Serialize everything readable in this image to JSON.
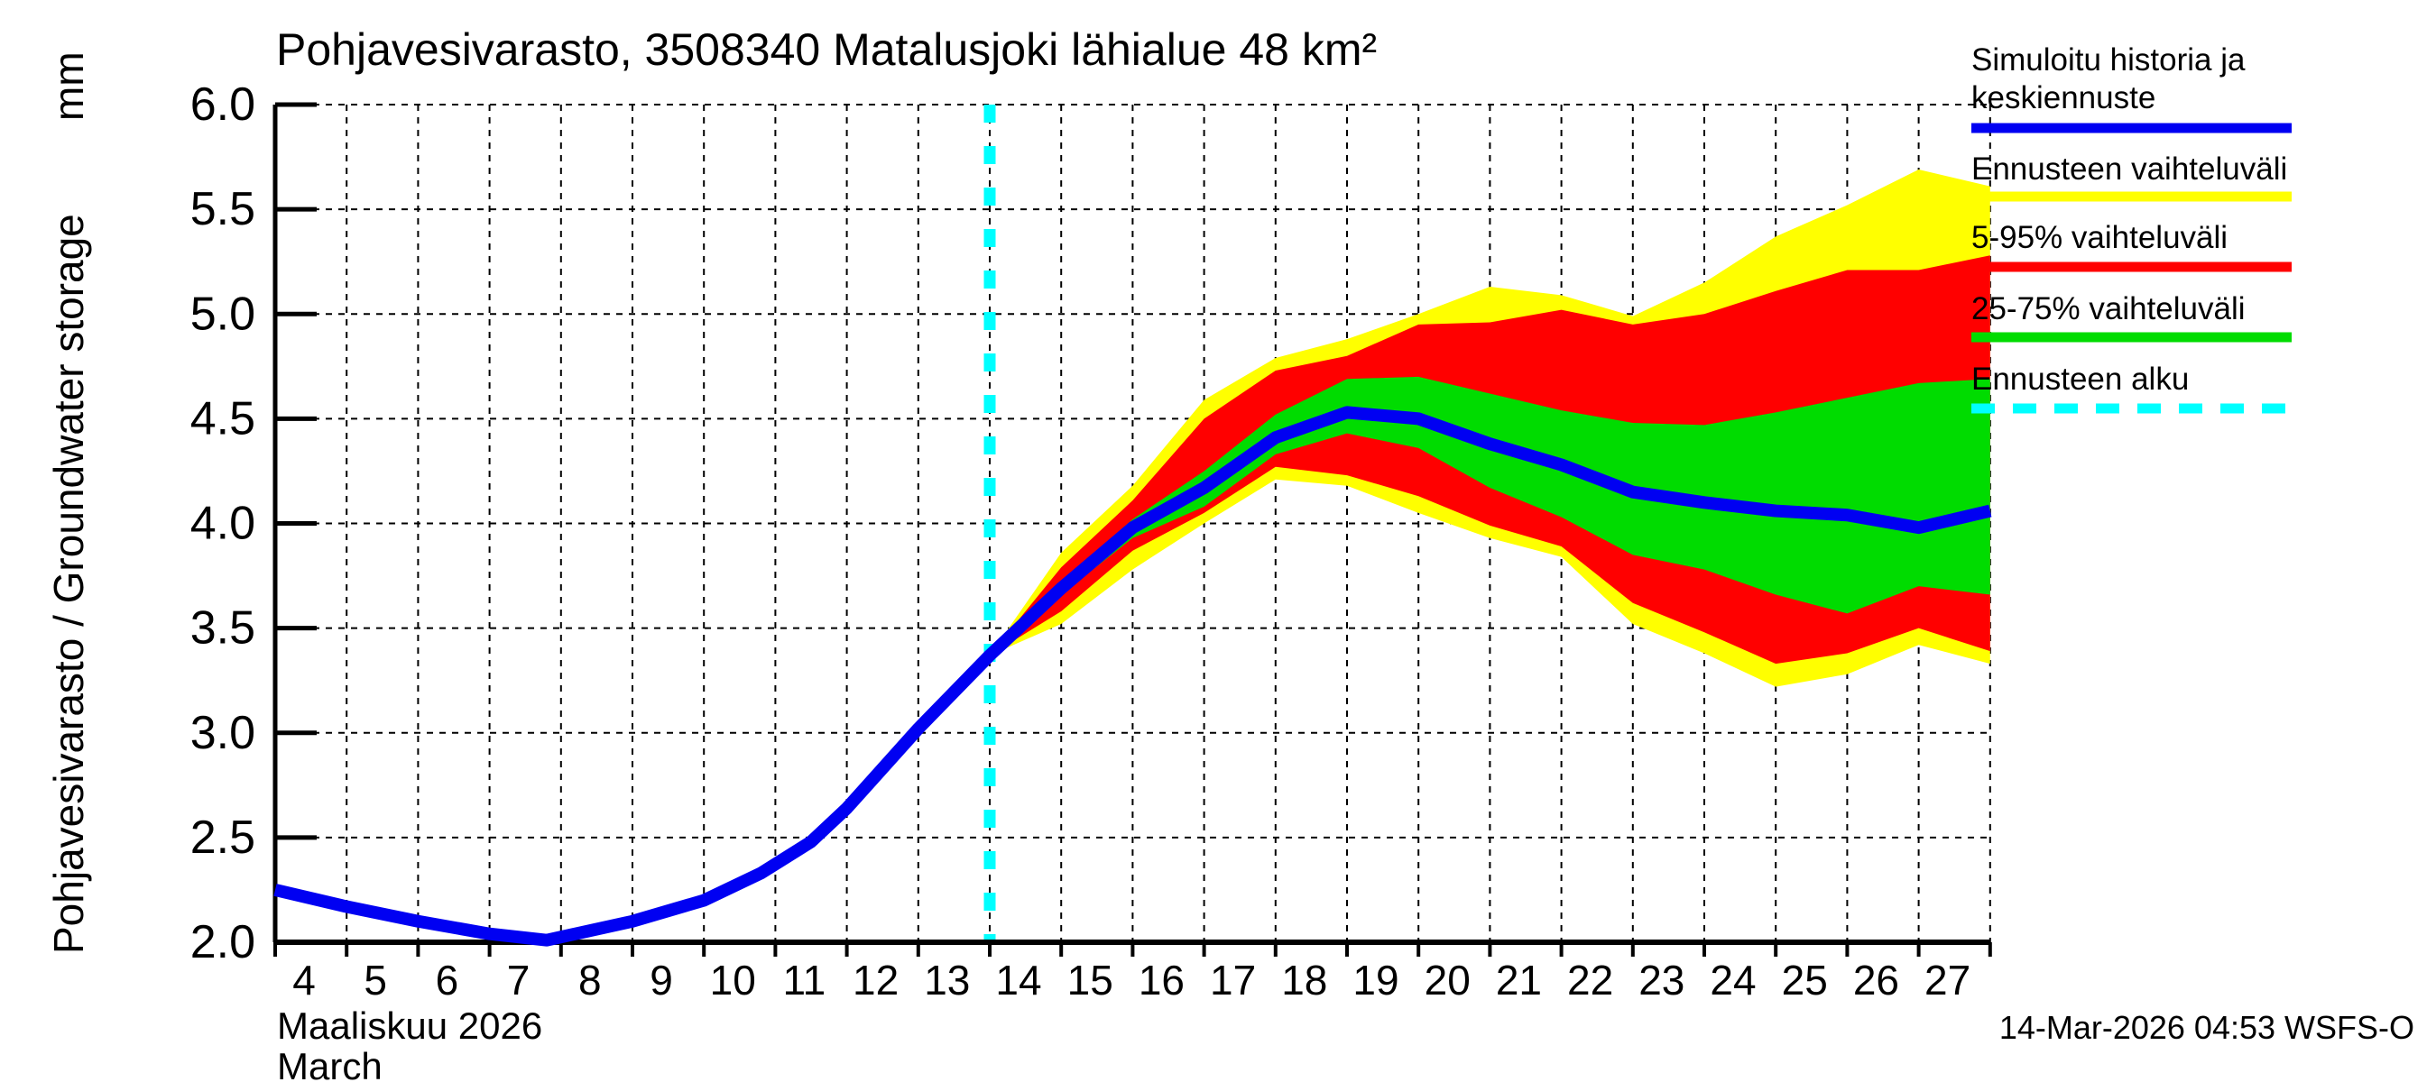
{
  "title": "Pohjavesivarasto, 3508340 Matalusjoki lähialue 48 km²",
  "y_axis": {
    "label": "Pohjavesivarasto / Groundwater storage",
    "unit": "mm",
    "tick_labels": [
      "6.0",
      "5.5",
      "5.0",
      "4.5",
      "4.0",
      "3.5",
      "3.0",
      "2.5",
      "2.0"
    ]
  },
  "x_axis": {
    "month_label_fi": "Maaliskuu 2026",
    "month_label_en": "March",
    "day_labels": [
      "4",
      "5",
      "6",
      "7",
      "8",
      "9",
      "10",
      "11",
      "12",
      "13",
      "14",
      "15",
      "16",
      "17",
      "18",
      "19",
      "20",
      "21",
      "22",
      "23",
      "24",
      "25",
      "26",
      "27"
    ]
  },
  "footer": {
    "generated": "14-Mar-2026 04:53 WSFS-O"
  },
  "legend": {
    "items": [
      {
        "lines": [
          "Simuloitu historia ja",
          "keskiennuste"
        ],
        "color": "#0000f2",
        "style": "solid"
      },
      {
        "lines": [
          "Ennusteen vaihteluväli"
        ],
        "color": "#ffff00",
        "style": "solid"
      },
      {
        "lines": [
          "5-95% vaihteluväli"
        ],
        "color": "#ff0000",
        "style": "solid"
      },
      {
        "lines": [
          "25-75% vaihteluväli"
        ],
        "color": "#00dc00",
        "style": "solid"
      },
      {
        "lines": [
          "Ennusteen alku"
        ],
        "color": "#00ffff",
        "style": "dashed"
      }
    ]
  },
  "colors": {
    "median": "#0000f2",
    "range_minmax": "#ffff00",
    "range_5_95": "#ff0000",
    "range_25_75": "#00dc00",
    "forecast_start": "#00ffff",
    "grid": "#000000",
    "text": "#000000",
    "background": "#ffffff"
  },
  "chart_data": {
    "type": "area",
    "title": "Pohjavesivarasto, 3508340 Matalusjoki lähialue 48 km²",
    "xlabel": "Maaliskuu 2026 / March",
    "ylabel": "Pohjavesivarasto / Groundwater storage (mm)",
    "ylim": [
      2.0,
      6.0
    ],
    "xlim_days": [
      4,
      28
    ],
    "grid": true,
    "legend_position": "top-right",
    "forecast_start_day": 14,
    "history": {
      "name": "Simuloitu historia (median line, observed part)",
      "x": [
        4,
        5,
        6,
        7,
        7.8,
        9,
        10,
        10.8,
        11.5,
        12,
        13,
        14
      ],
      "y": [
        2.25,
        2.17,
        2.1,
        2.04,
        2.01,
        2.1,
        2.2,
        2.33,
        2.48,
        2.64,
        3.02,
        3.37
      ]
    },
    "forecast": {
      "x": [
        14,
        15,
        16,
        17,
        18,
        19,
        20,
        21,
        22,
        23,
        24,
        25,
        26,
        27,
        28
      ],
      "median": [
        3.37,
        3.69,
        3.98,
        4.17,
        4.41,
        4.53,
        4.5,
        4.38,
        4.28,
        4.15,
        4.1,
        4.06,
        4.04,
        3.98,
        4.06
      ],
      "p75": [
        3.37,
        3.72,
        4.02,
        4.25,
        4.52,
        4.69,
        4.7,
        4.62,
        4.54,
        4.48,
        4.47,
        4.53,
        4.6,
        4.67,
        4.69
      ],
      "p25": [
        3.37,
        3.66,
        3.93,
        4.08,
        4.33,
        4.43,
        4.36,
        4.17,
        4.03,
        3.85,
        3.78,
        3.66,
        3.57,
        3.7,
        3.66
      ],
      "p95": [
        3.37,
        3.79,
        4.11,
        4.5,
        4.73,
        4.8,
        4.95,
        4.96,
        5.02,
        4.95,
        5.0,
        5.11,
        5.21,
        5.21,
        5.28
      ],
      "p05": [
        3.37,
        3.58,
        3.87,
        4.05,
        4.27,
        4.23,
        4.13,
        3.99,
        3.89,
        3.62,
        3.48,
        3.33,
        3.38,
        3.5,
        3.39
      ],
      "max": [
        3.37,
        3.86,
        4.18,
        4.59,
        4.79,
        4.88,
        5.0,
        5.13,
        5.09,
        4.99,
        5.15,
        5.37,
        5.52,
        5.69,
        5.61
      ],
      "min": [
        3.37,
        3.52,
        3.78,
        4.0,
        4.21,
        4.18,
        4.05,
        3.93,
        3.84,
        3.52,
        3.38,
        3.22,
        3.28,
        3.42,
        3.33
      ]
    }
  }
}
